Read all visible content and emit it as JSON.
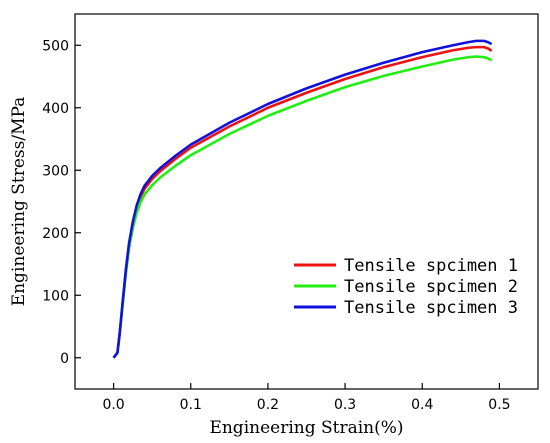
{
  "chart_data": {
    "type": "line",
    "xlabel": "Engineering Strain(%)",
    "ylabel": "Engineering Stress/MPa",
    "xlim": [
      -0.05,
      0.55
    ],
    "ylim": [
      -50,
      550
    ],
    "x_ticks": [
      0.0,
      0.1,
      0.2,
      0.3,
      0.4,
      0.5
    ],
    "x_tick_labels": [
      "0.0",
      "0.1",
      "0.2",
      "0.3",
      "0.4",
      "0.5"
    ],
    "y_ticks": [
      0,
      100,
      200,
      300,
      400,
      500
    ],
    "y_tick_labels": [
      "0",
      "100",
      "200",
      "300",
      "400",
      "500"
    ],
    "grid": false,
    "legend_position": "lower-right",
    "series": [
      {
        "name": "Tensile spcimen 1",
        "color": "#ee1111",
        "points": [
          [
            0.0,
            0
          ],
          [
            0.005,
            8
          ],
          [
            0.008,
            40
          ],
          [
            0.012,
            90
          ],
          [
            0.016,
            140
          ],
          [
            0.02,
            180
          ],
          [
            0.025,
            215
          ],
          [
            0.03,
            240
          ],
          [
            0.035,
            258
          ],
          [
            0.04,
            270
          ],
          [
            0.05,
            286
          ],
          [
            0.06,
            298
          ],
          [
            0.08,
            318
          ],
          [
            0.1,
            336
          ],
          [
            0.15,
            370
          ],
          [
            0.2,
            400
          ],
          [
            0.25,
            424
          ],
          [
            0.3,
            446
          ],
          [
            0.35,
            465
          ],
          [
            0.4,
            481
          ],
          [
            0.44,
            492
          ],
          [
            0.46,
            496
          ],
          [
            0.47,
            497
          ],
          [
            0.48,
            497
          ],
          [
            0.485,
            495
          ],
          [
            0.49,
            491
          ]
        ]
      },
      {
        "name": "Tensile spcimen 2",
        "color": "#22ee11",
        "points": [
          [
            0.0,
            0
          ],
          [
            0.005,
            8
          ],
          [
            0.008,
            40
          ],
          [
            0.012,
            88
          ],
          [
            0.016,
            135
          ],
          [
            0.02,
            175
          ],
          [
            0.025,
            208
          ],
          [
            0.03,
            232
          ],
          [
            0.035,
            249
          ],
          [
            0.04,
            261
          ],
          [
            0.05,
            276
          ],
          [
            0.06,
            288
          ],
          [
            0.08,
            307
          ],
          [
            0.1,
            324
          ],
          [
            0.15,
            358
          ],
          [
            0.2,
            387
          ],
          [
            0.25,
            411
          ],
          [
            0.3,
            433
          ],
          [
            0.35,
            451
          ],
          [
            0.4,
            466
          ],
          [
            0.44,
            477
          ],
          [
            0.46,
            481
          ],
          [
            0.47,
            482
          ],
          [
            0.48,
            481
          ],
          [
            0.485,
            479
          ],
          [
            0.49,
            476
          ]
        ]
      },
      {
        "name": "Tensile spcimen 3",
        "color": "#1111dd",
        "points": [
          [
            0.0,
            0
          ],
          [
            0.005,
            8
          ],
          [
            0.008,
            40
          ],
          [
            0.012,
            92
          ],
          [
            0.016,
            142
          ],
          [
            0.02,
            183
          ],
          [
            0.025,
            218
          ],
          [
            0.03,
            244
          ],
          [
            0.035,
            262
          ],
          [
            0.04,
            275
          ],
          [
            0.05,
            291
          ],
          [
            0.06,
            303
          ],
          [
            0.08,
            323
          ],
          [
            0.1,
            341
          ],
          [
            0.15,
            376
          ],
          [
            0.2,
            406
          ],
          [
            0.25,
            431
          ],
          [
            0.3,
            453
          ],
          [
            0.35,
            472
          ],
          [
            0.4,
            489
          ],
          [
            0.44,
            500
          ],
          [
            0.46,
            505
          ],
          [
            0.47,
            507
          ],
          [
            0.48,
            507
          ],
          [
            0.485,
            505
          ],
          [
            0.49,
            502
          ]
        ]
      }
    ]
  }
}
